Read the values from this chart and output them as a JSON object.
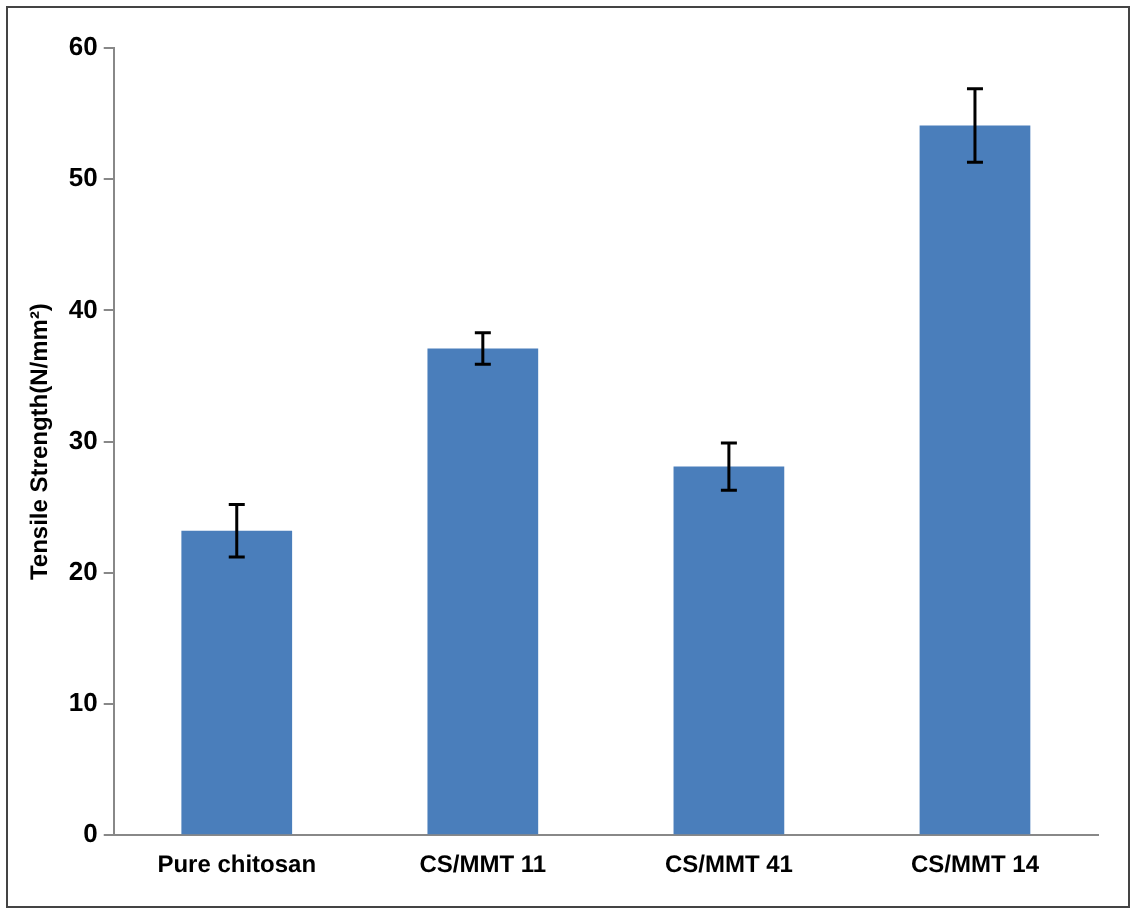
{
  "chart_data": {
    "type": "bar",
    "ylabel": "Tensile Strength(N/mm²)",
    "categories": [
      "Pure chitosan",
      "CS/MMT 11",
      "CS/MMT 41",
      "CS/MMT 14"
    ],
    "values": [
      23.2,
      37.1,
      28.1,
      54.1
    ],
    "errors": [
      2.0,
      1.2,
      1.8,
      2.8
    ],
    "color": "#4a7ebb",
    "ylim": [
      0,
      60
    ],
    "yticks": [
      0,
      10,
      20,
      30,
      40,
      50,
      60
    ],
    "grid": false,
    "legend": false
  }
}
